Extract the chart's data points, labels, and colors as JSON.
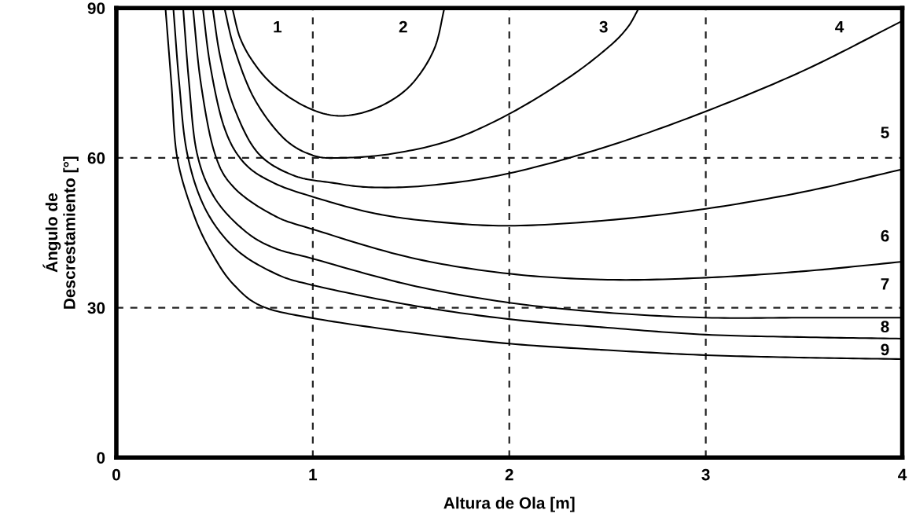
{
  "chart_data": {
    "type": "line",
    "xlabel": "Altura de Ola [m]",
    "ylabel": "Ángulo de\nDescrestamiento [°]",
    "xlim": [
      0,
      4
    ],
    "ylim": [
      0,
      90
    ],
    "xticks": [
      0,
      1,
      2,
      3,
      4
    ],
    "yticks": [
      0,
      30,
      60,
      90
    ],
    "grid": true,
    "marker": "none",
    "line_style": "solid",
    "series": [
      {
        "color": "#000000",
        "x": [
          0.59,
          0.63,
          0.7,
          0.8,
          0.95,
          1.1,
          1.25,
          1.4,
          1.52,
          1.62,
          1.67
        ],
        "values": [
          90,
          84,
          79,
          74.5,
          70.5,
          68.5,
          69,
          71.5,
          75.5,
          82,
          90
        ]
      },
      {
        "color": "#000000",
        "x": [
          0.55,
          0.6,
          0.7,
          0.85,
          1.0,
          1.15,
          1.4,
          1.7,
          2.0,
          2.3,
          2.5,
          2.6,
          2.66
        ],
        "values": [
          90,
          82,
          72,
          64,
          60.5,
          60,
          60.8,
          63.5,
          68.8,
          76,
          82,
          86,
          90
        ]
      },
      {
        "color": "#000000",
        "x": [
          0.49,
          0.53,
          0.6,
          0.72,
          0.9,
          1.1,
          1.3,
          1.6,
          2.0,
          2.5,
          3.0,
          3.5,
          4.0
        ],
        "values": [
          90,
          80,
          70,
          61,
          56.5,
          55,
          54.1,
          54.5,
          56.9,
          62.3,
          69.3,
          77.5,
          87.4
        ]
      },
      {
        "color": "#000000",
        "x": [
          0.44,
          0.48,
          0.55,
          0.65,
          0.8,
          1.0,
          1.3,
          1.6,
          2.0,
          2.5,
          3.0,
          3.5,
          4.0
        ],
        "values": [
          90,
          78,
          66,
          59,
          55,
          52.2,
          49,
          47.3,
          46.4,
          47.5,
          49.8,
          53.2,
          57.7
        ]
      },
      {
        "color": "#000000",
        "x": [
          0.39,
          0.43,
          0.5,
          0.6,
          0.8,
          1.0,
          1.5,
          2.0,
          2.5,
          3.0,
          3.5,
          4.0
        ],
        "values": [
          90,
          75,
          61,
          54,
          48.5,
          45.7,
          40,
          36.8,
          35.6,
          36,
          37.3,
          39.2
        ]
      },
      {
        "color": "#000000",
        "x": [
          0.34,
          0.37,
          0.41,
          0.5,
          0.65,
          0.8,
          1.0,
          1.5,
          2.0,
          2.5,
          3.0,
          3.5,
          4.0
        ],
        "values": [
          90,
          75,
          61,
          52,
          45.5,
          42,
          39.8,
          34.5,
          31,
          29,
          28,
          28,
          28
        ]
      },
      {
        "color": "#000000",
        "x": [
          0.29,
          0.32,
          0.36,
          0.45,
          0.6,
          0.8,
          1.0,
          1.5,
          2.0,
          2.5,
          3.0,
          3.5,
          4.0
        ],
        "values": [
          90,
          75,
          61,
          50,
          42,
          37,
          34.5,
          30.5,
          27.7,
          26,
          24.6,
          24.1,
          23.8
        ]
      },
      {
        "color": "#000000",
        "x": [
          0.25,
          0.28,
          0.31,
          0.4,
          0.5,
          0.6,
          0.74,
          1.0,
          1.5,
          2.0,
          2.5,
          3.0,
          3.5,
          4.0
        ],
        "values": [
          90,
          75,
          60,
          48,
          40,
          34.5,
          30.3,
          27.9,
          25,
          22.8,
          21.5,
          20.5,
          20,
          19.7
        ]
      }
    ],
    "annotations": [
      "1",
      "2",
      "3",
      "4",
      "5",
      "6",
      "7",
      "8",
      "9"
    ]
  }
}
